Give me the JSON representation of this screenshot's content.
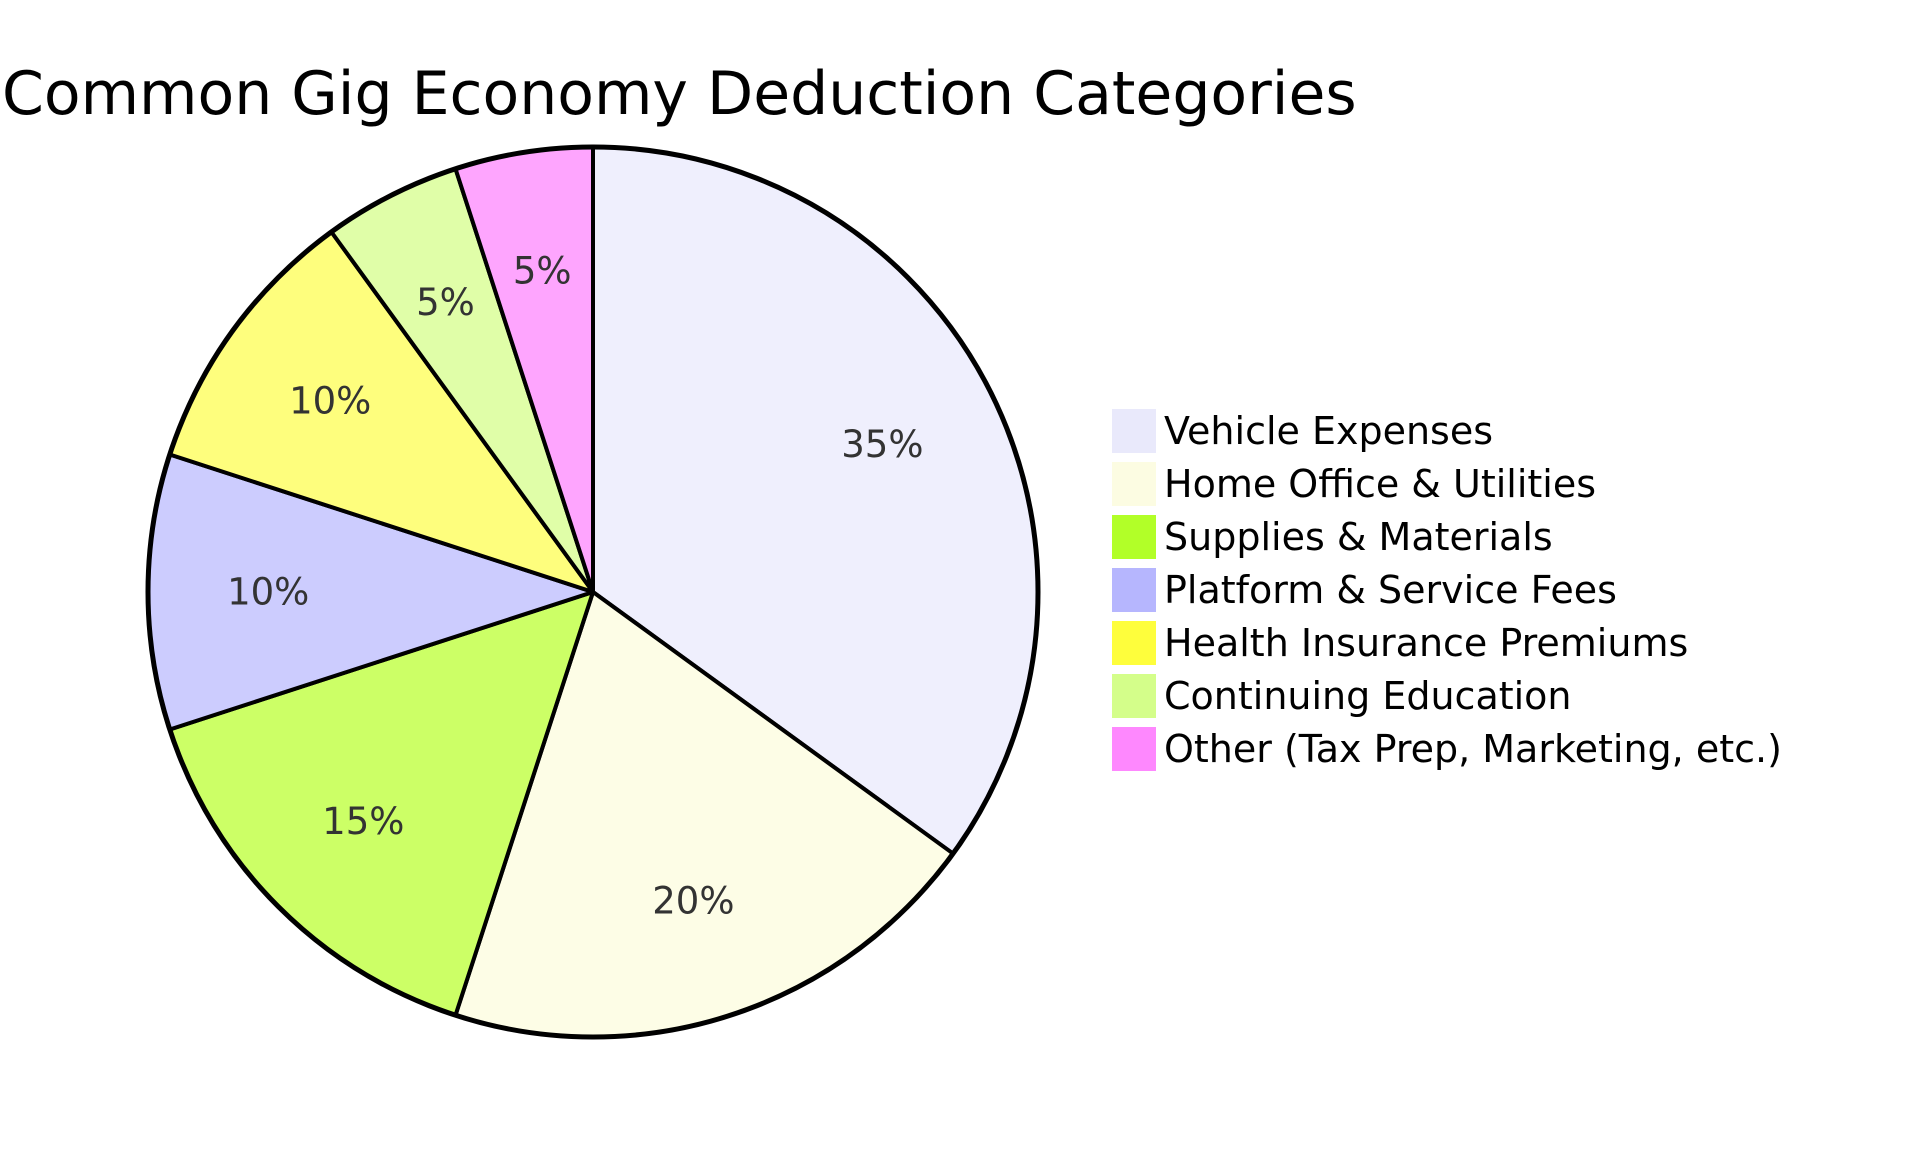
{
  "chart_data": {
    "type": "pie",
    "title": "Common Gig Economy Deduction Categories",
    "start_angle_deg": 0,
    "direction": "clockwise",
    "legend_position": "right",
    "slices": [
      {
        "label": "Vehicle Expenses",
        "value": 35,
        "display": "35%",
        "color": "#efeffd",
        "legend_color": "#e9e9fb"
      },
      {
        "label": "Home Office & Utilities",
        "value": 20,
        "display": "20%",
        "color": "#fdfde6",
        "legend_color": "#fcfce2"
      },
      {
        "label": "Supplies & Materials",
        "value": 15,
        "display": "15%",
        "color": "#ccff66",
        "legend_color": "#b2ff28"
      },
      {
        "label": "Platform & Service Fees",
        "value": 10,
        "display": "10%",
        "color": "#ccccfe",
        "legend_color": "#b6b6fe"
      },
      {
        "label": "Health Insurance Premiums",
        "value": 10,
        "display": "10%",
        "color": "#fefe7d",
        "legend_color": "#fefe3c"
      },
      {
        "label": "Continuing Education",
        "value": 5,
        "display": "5%",
        "color": "#e0fea8",
        "legend_color": "#d4fe8a"
      },
      {
        "label": "Other (Tax Prep, Marketing, etc.)",
        "value": 5,
        "display": "5%",
        "color": "#fea5fe",
        "legend_color": "#fe88fe"
      }
    ]
  }
}
